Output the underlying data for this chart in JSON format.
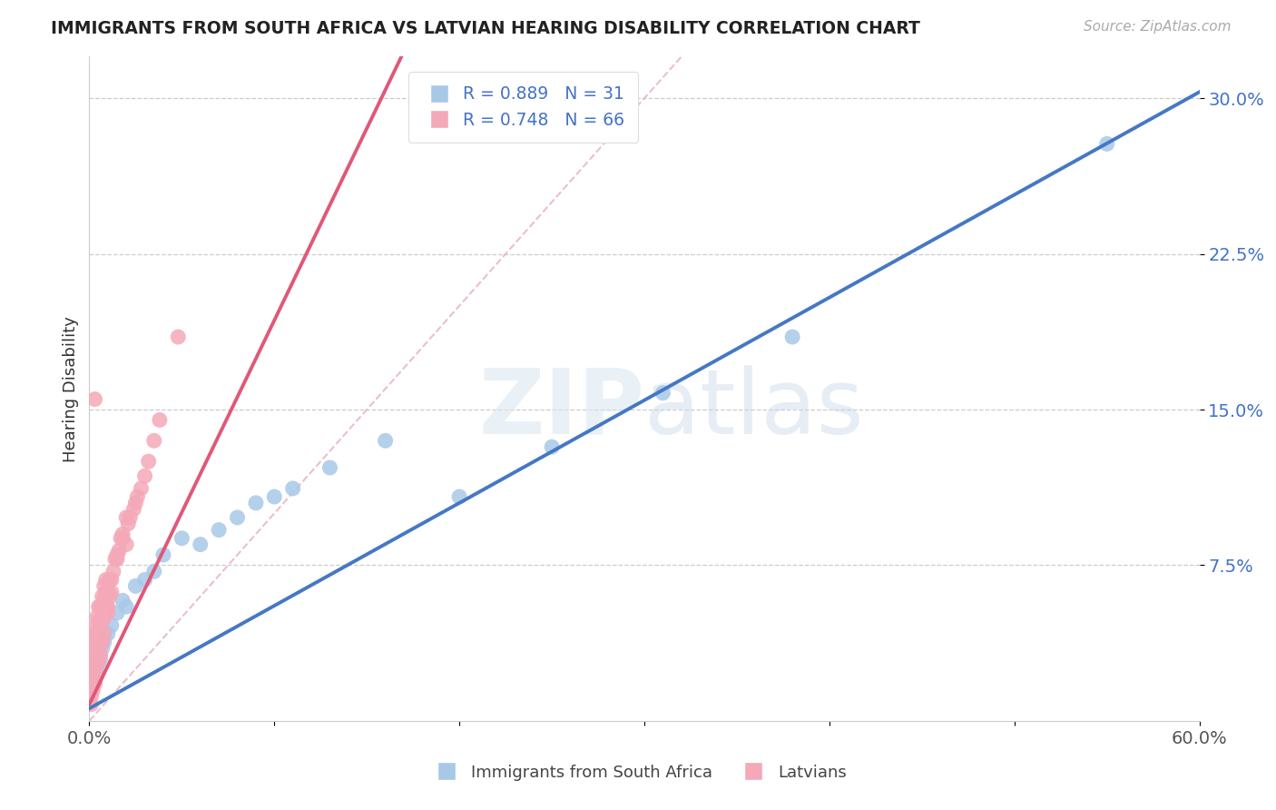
{
  "title": "IMMIGRANTS FROM SOUTH AFRICA VS LATVIAN HEARING DISABILITY CORRELATION CHART",
  "source": "Source: ZipAtlas.com",
  "ylabel": "Hearing Disability",
  "xlim": [
    0.0,
    0.6
  ],
  "ylim": [
    0.0,
    0.32
  ],
  "blue_R": 0.889,
  "blue_N": 31,
  "pink_R": 0.748,
  "pink_N": 66,
  "blue_color": "#a8c8e8",
  "pink_color": "#f4a8b8",
  "blue_line_color": "#4478c4",
  "pink_line_color": "#e05878",
  "ref_line_color": "#e8b8c8",
  "grid_color": "#cccccc",
  "background_color": "#ffffff",
  "tick_color": "#4472c4",
  "legend_label_blue": "Immigrants from South Africa",
  "legend_label_pink": "Latvians",
  "blue_slope": 0.495,
  "blue_intercept": 0.006,
  "pink_slope": 1.85,
  "pink_intercept": 0.008,
  "blue_x": [
    0.001,
    0.002,
    0.003,
    0.004,
    0.005,
    0.006,
    0.007,
    0.008,
    0.01,
    0.012,
    0.015,
    0.018,
    0.02,
    0.025,
    0.03,
    0.035,
    0.04,
    0.05,
    0.06,
    0.07,
    0.08,
    0.09,
    0.1,
    0.11,
    0.13,
    0.16,
    0.2,
    0.25,
    0.31,
    0.38,
    0.55
  ],
  "blue_y": [
    0.016,
    0.02,
    0.022,
    0.025,
    0.028,
    0.03,
    0.035,
    0.038,
    0.042,
    0.046,
    0.052,
    0.058,
    0.055,
    0.065,
    0.068,
    0.072,
    0.08,
    0.088,
    0.085,
    0.092,
    0.098,
    0.105,
    0.108,
    0.112,
    0.122,
    0.135,
    0.108,
    0.132,
    0.158,
    0.185,
    0.278
  ],
  "pink_x": [
    0.001,
    0.001,
    0.002,
    0.002,
    0.002,
    0.003,
    0.003,
    0.003,
    0.003,
    0.004,
    0.004,
    0.004,
    0.005,
    0.005,
    0.005,
    0.005,
    0.006,
    0.006,
    0.006,
    0.007,
    0.007,
    0.007,
    0.008,
    0.008,
    0.008,
    0.009,
    0.009,
    0.009,
    0.01,
    0.01,
    0.011,
    0.011,
    0.012,
    0.013,
    0.014,
    0.015,
    0.016,
    0.017,
    0.018,
    0.02,
    0.021,
    0.022,
    0.024,
    0.025,
    0.026,
    0.028,
    0.03,
    0.032,
    0.035,
    0.038,
    0.001,
    0.002,
    0.003,
    0.004,
    0.005,
    0.006,
    0.007,
    0.008,
    0.01,
    0.012,
    0.015,
    0.018,
    0.02,
    0.003,
    0.048,
    0.001
  ],
  "pink_y": [
    0.018,
    0.022,
    0.025,
    0.03,
    0.035,
    0.028,
    0.033,
    0.04,
    0.045,
    0.038,
    0.042,
    0.05,
    0.035,
    0.042,
    0.048,
    0.055,
    0.04,
    0.048,
    0.055,
    0.048,
    0.055,
    0.06,
    0.05,
    0.058,
    0.065,
    0.055,
    0.062,
    0.068,
    0.055,
    0.062,
    0.06,
    0.068,
    0.068,
    0.072,
    0.078,
    0.08,
    0.082,
    0.088,
    0.09,
    0.085,
    0.095,
    0.098,
    0.102,
    0.105,
    0.108,
    0.112,
    0.118,
    0.125,
    0.135,
    0.145,
    0.012,
    0.015,
    0.018,
    0.022,
    0.028,
    0.032,
    0.038,
    0.042,
    0.052,
    0.062,
    0.078,
    0.088,
    0.098,
    0.155,
    0.185,
    0.008
  ]
}
